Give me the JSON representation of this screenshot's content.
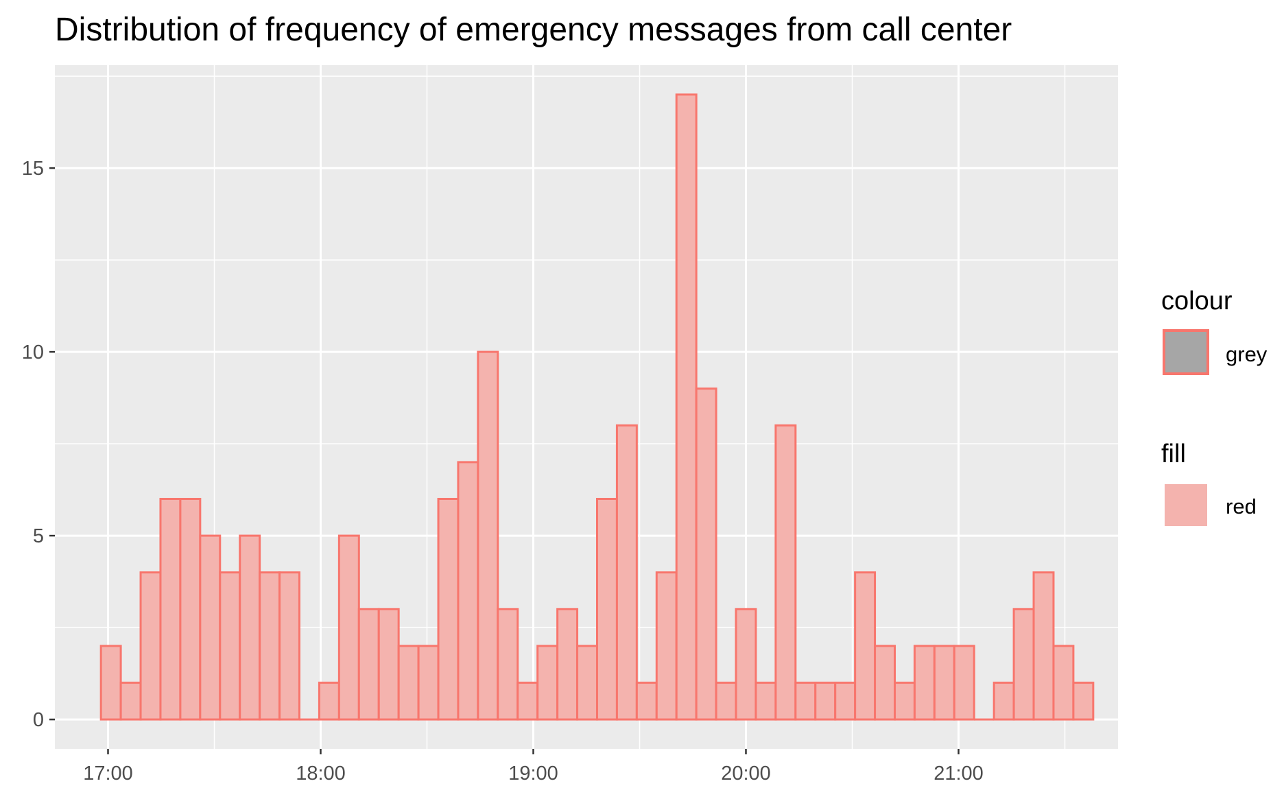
{
  "chart_data": {
    "type": "bar",
    "title": "Distribution of frequency of emergency messages from call center",
    "xlabel": "",
    "ylabel": "",
    "x_axis": {
      "type": "time",
      "range": [
        "16:45",
        "21:45"
      ],
      "ticks": [
        "17:00",
        "18:00",
        "19:00",
        "20:00",
        "21:00"
      ]
    },
    "y_axis": {
      "range": [
        -0.8,
        17.8
      ],
      "ticks": [
        "0",
        "5",
        "10",
        "15"
      ]
    },
    "grid": true,
    "bins": {
      "start": "16:58",
      "width_minutes": 5.6
    },
    "values": [
      2,
      1,
      4,
      6,
      6,
      5,
      4,
      5,
      4,
      4,
      0,
      1,
      5,
      3,
      3,
      2,
      2,
      6,
      7,
      10,
      3,
      1,
      2,
      3,
      2,
      6,
      8,
      1,
      4,
      17,
      9,
      1,
      3,
      1,
      8,
      1,
      1,
      1,
      4,
      2,
      1,
      2,
      2,
      2,
      0,
      1,
      3,
      4,
      2,
      1
    ],
    "bar_fill": "#f4b3ae",
    "bar_outline": "#f8766d",
    "panel_background": "#ebebeb",
    "gridline_color": "#ffffff",
    "legend": {
      "position": "right",
      "groups": [
        {
          "title": "colour",
          "items": [
            {
              "label": "grey",
              "fill": "#a6a6a6",
              "outline": "#f8766d"
            }
          ]
        },
        {
          "title": "fill",
          "items": [
            {
              "label": "red",
              "fill": "#f4b3ae",
              "outline": "#ffffff"
            }
          ]
        }
      ]
    }
  }
}
